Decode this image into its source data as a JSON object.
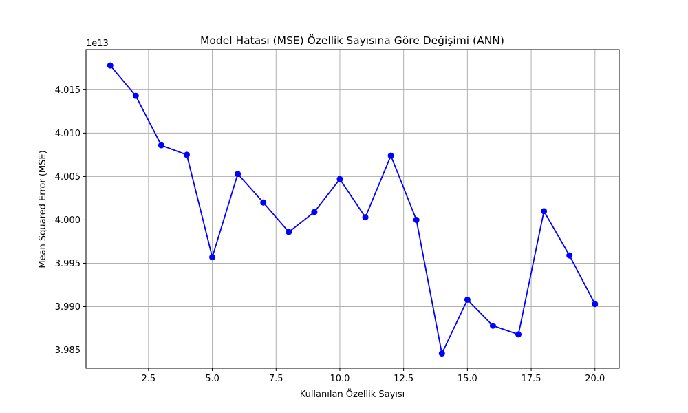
{
  "chart_data": {
    "type": "line",
    "title": "Model Hatası (MSE) Özellik Sayısına Göre Değişimi (ANN)",
    "xlabel": "Kullanılan Özellik Sayısı",
    "ylabel": "Mean Squared Error (MSE)",
    "y_offset_label": "1e13",
    "x_ticks": [
      2.5,
      5.0,
      7.5,
      10.0,
      12.5,
      15.0,
      17.5,
      20.0
    ],
    "x_tick_labels": [
      "2.5",
      "5.0",
      "7.5",
      "10.0",
      "12.5",
      "15.0",
      "17.5",
      "20.0"
    ],
    "y_ticks": [
      3.985,
      3.99,
      3.995,
      4.0,
      4.005,
      4.01,
      4.015
    ],
    "y_tick_labels": [
      "3.985",
      "3.990",
      "3.995",
      "4.000",
      "4.005",
      "4.010",
      "4.015"
    ],
    "xlim": [
      0.05,
      20.95
    ],
    "ylim": [
      3.9829,
      4.01963
    ],
    "grid": true,
    "marker": "circle",
    "color": "#0000ff",
    "series": [
      {
        "x": [
          1,
          2,
          3,
          4,
          5,
          6,
          7,
          8,
          9,
          10,
          11,
          12,
          13,
          14,
          15,
          16,
          17,
          18,
          19,
          20
        ],
        "values": [
          4.0178,
          4.0143,
          4.0086,
          4.0075,
          3.9957,
          4.0053,
          4.002,
          3.9986,
          4.0009,
          4.0047,
          4.0003,
          4.0074,
          4.0,
          3.9846,
          3.9908,
          3.9878,
          3.9868,
          4.001,
          3.9959,
          3.9903
        ]
      }
    ]
  }
}
